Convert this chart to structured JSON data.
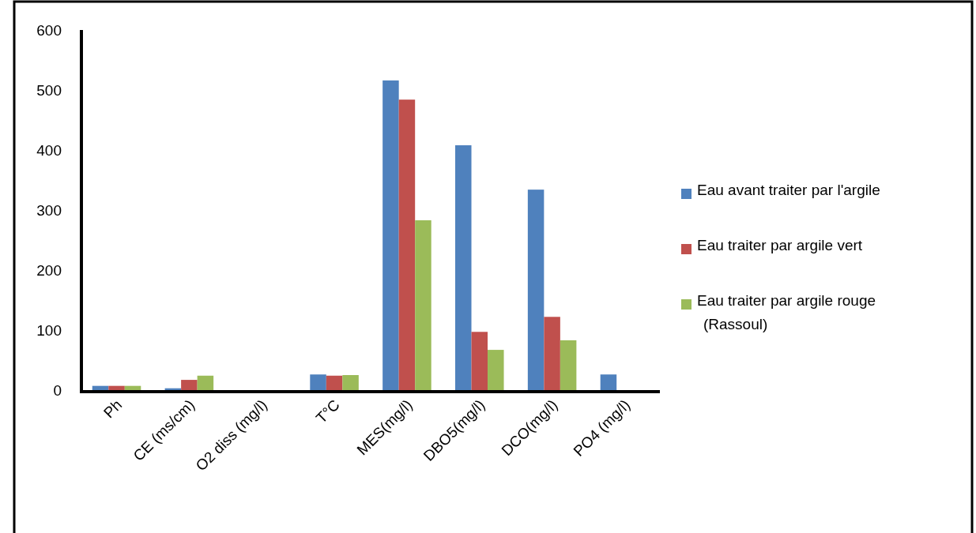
{
  "chart_data": {
    "type": "bar",
    "categories": [
      "Ph",
      "CE (ms/cm)",
      "O2 diss (mg/l)",
      "T°C",
      "MES(mg/l)",
      "DBO5(mg/l)",
      "DCO(mg/l)",
      "PO4 (mg/l)"
    ],
    "series": [
      {
        "name": "Eau avant traiter par l'argile",
        "color": "#4f81bd",
        "values": [
          7,
          3,
          null,
          26,
          516,
          408,
          334,
          26
        ]
      },
      {
        "name": "Eau traiter par argile vert",
        "color": "#c0504d",
        "values": [
          7,
          17,
          null,
          24,
          484,
          97,
          122,
          null
        ]
      },
      {
        "name": "Eau traiter par argile rouge (Rassoul)",
        "color": "#9bbb59",
        "values": [
          7,
          24,
          null,
          25,
          283,
          67,
          83,
          null
        ]
      }
    ],
    "ylim": [
      0,
      600
    ],
    "yticks": [
      0,
      100,
      200,
      300,
      400,
      500,
      600
    ],
    "grid": false,
    "legend": "right"
  }
}
